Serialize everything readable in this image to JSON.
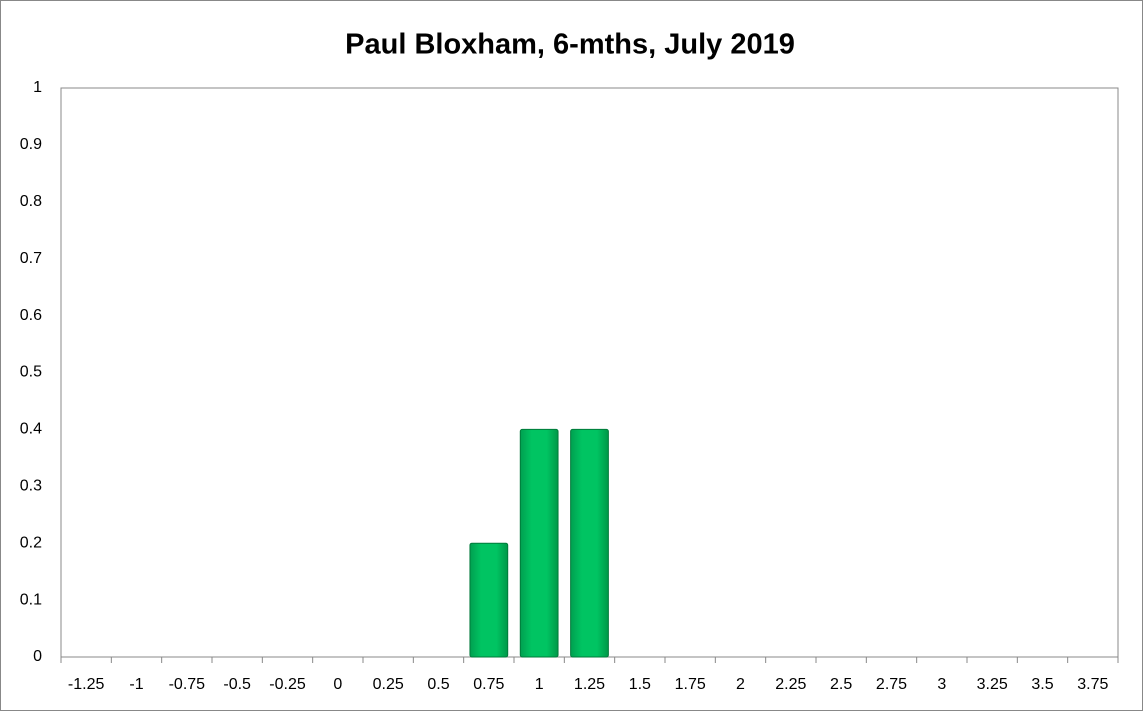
{
  "chart_data": {
    "type": "bar",
    "title": "Paul Bloxham, 6-mths, July 2019",
    "categories": [
      "-1.25",
      "-1",
      "-0.75",
      "-0.5",
      "-0.25",
      "0",
      "0.25",
      "0.5",
      "0.75",
      "1",
      "1.25",
      "1.5",
      "1.75",
      "2",
      "2.25",
      "2.5",
      "2.75",
      "3",
      "3.25",
      "3.5",
      "3.75"
    ],
    "values": [
      0,
      0,
      0,
      0,
      0,
      0,
      0,
      0,
      0.2,
      0.4,
      0.4,
      0,
      0,
      0,
      0,
      0,
      0,
      0,
      0,
      0,
      0
    ],
    "color": "#00c060",
    "ylim": [
      0,
      1
    ],
    "yticks": [
      0,
      0.1,
      0.2,
      0.3,
      0.4,
      0.5,
      0.6,
      0.7,
      0.8,
      0.9,
      1
    ],
    "grid": false
  }
}
